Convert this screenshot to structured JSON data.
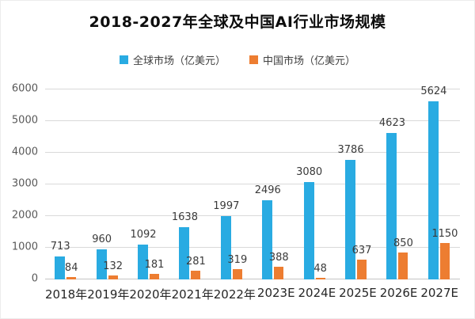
{
  "title": "2018-2027年全球及中国AI行业市场规模",
  "legend": {
    "items": [
      {
        "label": "全球市场（亿美元）",
        "color": "#29ABE2"
      },
      {
        "label": "中国市场（亿美元）",
        "color": "#ED7D31"
      }
    ]
  },
  "colors": {
    "global_market": "#29ABE2",
    "china_market": "#ED7D31",
    "gridline": "#d9d9d9",
    "title_text": "#0d0d0d"
  },
  "chart_data": {
    "type": "bar",
    "title": "2018-2027年全球及中国AI行业市场规模",
    "categories": [
      "2018年",
      "2019年",
      "2020年",
      "2021年",
      "2022年",
      "2023E",
      "2024E",
      "2025E",
      "2026E",
      "2027E"
    ],
    "series": [
      {
        "name": "全球市场（亿美元）",
        "color": "#29ABE2",
        "values": [
          713,
          960,
          1092,
          1638,
          1997,
          2496,
          3080,
          3786,
          4623,
          5624
        ]
      },
      {
        "name": "中国市场（亿美元）",
        "color": "#ED7D31",
        "values": [
          84,
          132,
          181,
          281,
          319,
          388,
          48,
          637,
          850,
          1150
        ]
      }
    ],
    "xlabel": "",
    "ylabel": "",
    "ylim": [
      0,
      6000
    ],
    "yticks": [
      0,
      1000,
      2000,
      3000,
      4000,
      5000,
      6000
    ],
    "grid": true,
    "legend_position": "top",
    "data_labels": true
  }
}
